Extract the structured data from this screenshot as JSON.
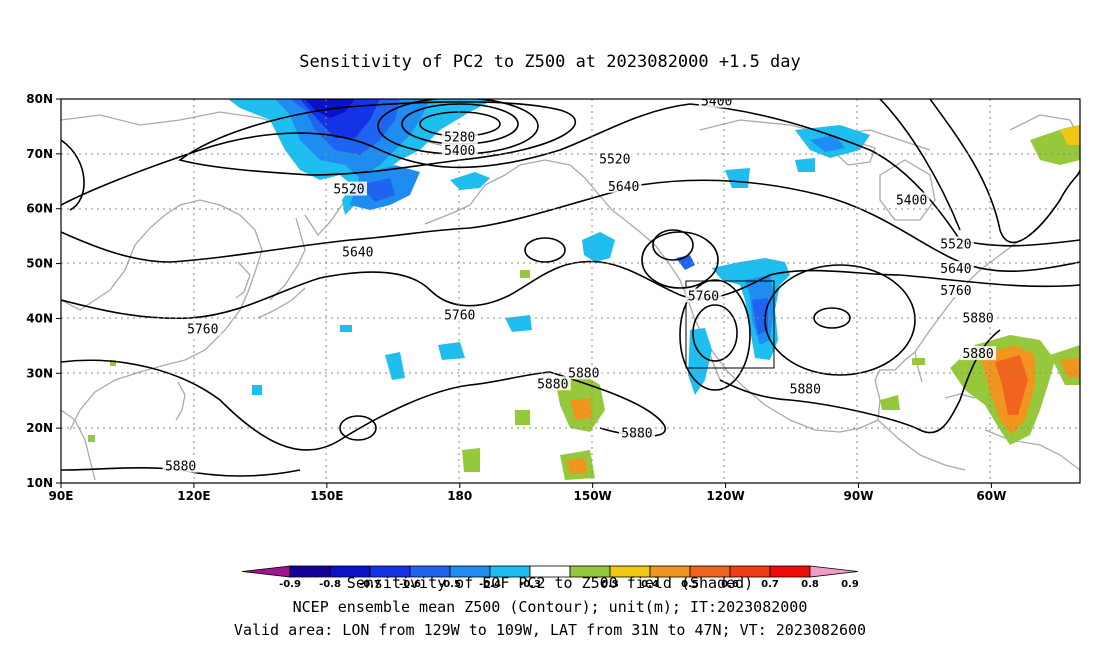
{
  "title": "Sensitivity of PC2 to Z500 at 2023082000 +1.5 day",
  "lon_ticks": [
    "90E",
    "120E",
    "150E",
    "180",
    "150W",
    "120W",
    "90W",
    "60W"
  ],
  "lat_ticks": [
    "80N",
    "70N",
    "60N",
    "50N",
    "40N",
    "30N",
    "20N",
    "10N"
  ],
  "contour_labels": [
    {
      "text": "5280",
      "lon": 180,
      "lat": 73
    },
    {
      "text": "5400",
      "lon": 180,
      "lat": 70.5
    },
    {
      "text": "5400",
      "lon": -122,
      "lat": 79.5
    },
    {
      "text": "5400",
      "lon": -78,
      "lat": 61.5
    },
    {
      "text": "5520",
      "lon": 155,
      "lat": 63.5
    },
    {
      "text": "5520",
      "lon": -145,
      "lat": 69
    },
    {
      "text": "5520",
      "lon": -68,
      "lat": 53.5
    },
    {
      "text": "5640",
      "lon": 157,
      "lat": 52
    },
    {
      "text": "5640",
      "lon": -143,
      "lat": 64
    },
    {
      "text": "5640",
      "lon": -68,
      "lat": 49
    },
    {
      "text": "5760",
      "lon": 180,
      "lat": 40.5
    },
    {
      "text": "5760",
      "lon": 122,
      "lat": 38
    },
    {
      "text": "5760",
      "lon": -125,
      "lat": 44
    },
    {
      "text": "5760",
      "lon": -68,
      "lat": 45
    },
    {
      "text": "5880",
      "lon": -102,
      "lat": 27
    },
    {
      "text": "5880",
      "lon": -159,
      "lat": 28
    },
    {
      "text": "5880",
      "lon": -152,
      "lat": 30
    },
    {
      "text": "5880",
      "lon": -140,
      "lat": 19
    },
    {
      "text": "5880",
      "lon": -63,
      "lat": 40
    },
    {
      "text": "5880",
      "lon": -63,
      "lat": 33.5
    },
    {
      "text": "5880",
      "lon": 117,
      "lat": 13
    }
  ],
  "box_label": "Valid area: LON from 129W to 109W, LAT from 31N to 47N",
  "colorbar": {
    "labels": [
      "-0.9",
      "-0.8",
      "-0.7",
      "-0.6",
      "-0.5",
      "-0.4",
      "-0.3",
      "0.3",
      "0.4",
      "0.5",
      "0.6",
      "0.7",
      "0.8",
      "0.9"
    ],
    "colors": [
      "#a0148c",
      "#16009a",
      "#0a12c8",
      "#1432e6",
      "#1e64f0",
      "#1e8cf0",
      "#1ebef0",
      "#ffffff",
      "#96c83c",
      "#f0c814",
      "#f0961e",
      "#f0641e",
      "#f03c14",
      "#f00a0a",
      "#f09cc8"
    ]
  },
  "captions": {
    "line1": "Sensitivity of EOF PC2 to Z500 field (Shaded)",
    "line2": "NCEP ensemble mean Z500 (Contour); unit(m); IT:2023082000",
    "line3": "Valid area: LON from 129W to 109W, LAT from 31N to 47N; VT: 2023082600"
  }
}
